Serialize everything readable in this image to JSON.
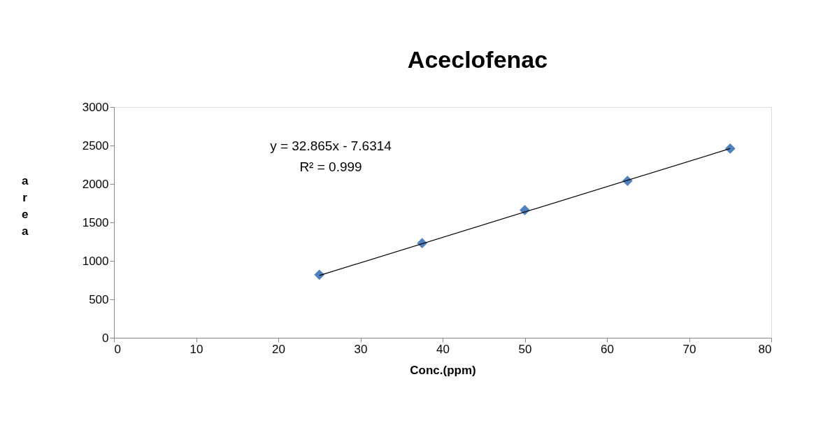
{
  "chart_data": {
    "type": "scatter",
    "title": "Aceclofenac",
    "xlabel": "Conc.(ppm)",
    "ylabel": "area",
    "x": [
      25,
      37.5,
      50,
      62.5,
      75
    ],
    "series": [
      {
        "color": "#4f81bd",
        "values": [
          820,
          1230,
          1660,
          2040,
          2460
        ],
        "marker": "diamond"
      },
      {
        "type": "line",
        "color": "#000000",
        "x": [
          25,
          75
        ],
        "values": [
          810,
          2460
        ],
        "marker": "none"
      }
    ],
    "xlim": [
      0,
      80
    ],
    "xticks": [
      0,
      10,
      20,
      30,
      40,
      50,
      60,
      70,
      80
    ],
    "ylim": [
      0,
      3000
    ],
    "yticks": [
      0,
      500,
      1000,
      1500,
      2000,
      2500,
      3000
    ],
    "grid": false,
    "annotations": [
      "y = 32.865x - 7.6314",
      "R² = 0.999"
    ]
  }
}
